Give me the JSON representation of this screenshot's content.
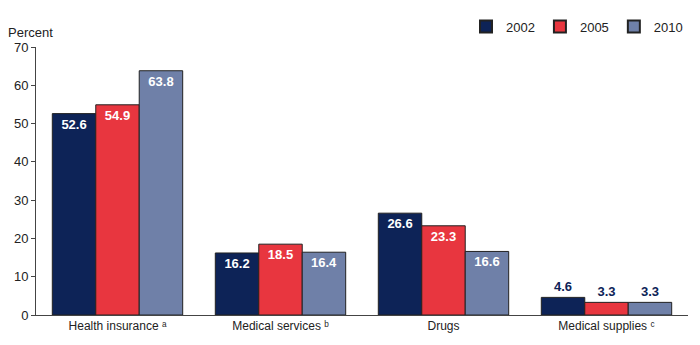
{
  "chart_data": {
    "type": "bar",
    "y_label": "Percent",
    "categories": [
      "Health insurance ᵃ",
      "Medical services ᵇ",
      "Drugs",
      "Medical supplies ᶜ"
    ],
    "series": [
      {
        "name": "2002",
        "color": "#0d2357",
        "values": [
          52.6,
          16.2,
          26.6,
          4.6
        ]
      },
      {
        "name": "2005",
        "color": "#e8363f",
        "values": [
          54.9,
          18.5,
          23.3,
          3.3
        ]
      },
      {
        "name": "2010",
        "color": "#6f80a8",
        "values": [
          63.8,
          16.4,
          16.6,
          3.3
        ]
      }
    ],
    "ylim": [
      0,
      70
    ],
    "yticks": [
      0,
      10,
      20,
      30,
      40,
      50,
      60,
      70
    ],
    "grid": false,
    "legend": "top right",
    "data_labels": true
  }
}
